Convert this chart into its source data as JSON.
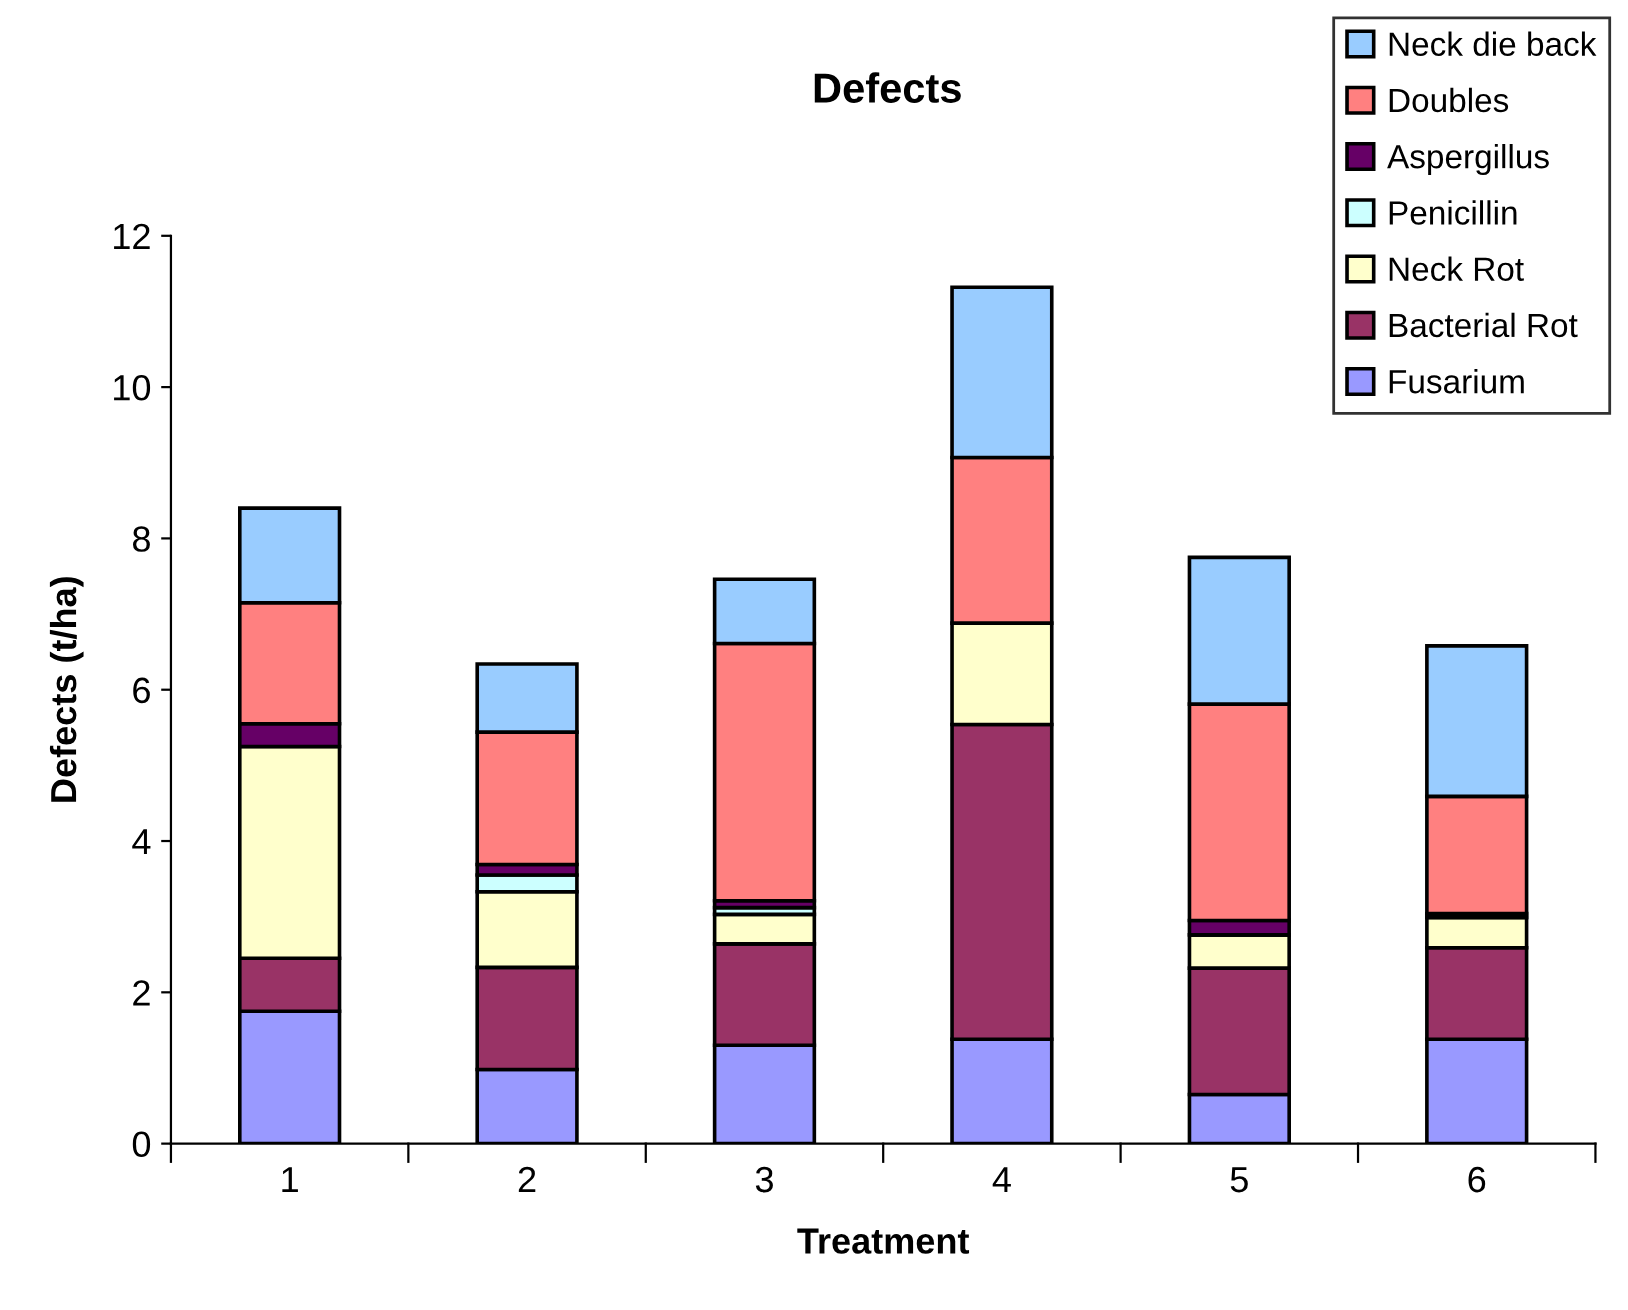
{
  "chart_data": {
    "type": "bar",
    "title": "Defects",
    "xlabel": "Treatment",
    "ylabel": "Defects (t/ha)",
    "categories": [
      "1",
      "2",
      "3",
      "4",
      "5",
      "6"
    ],
    "stacked": true,
    "legend": "top right",
    "grid": false,
    "ylim": [
      0,
      12
    ],
    "yticks": [
      0,
      2,
      4,
      6,
      8,
      10,
      12
    ],
    "series": [
      {
        "name": "Fusarium",
        "color": "#9999ff",
        "values": [
          1.75,
          0.98,
          1.3,
          1.38,
          0.65,
          1.38
        ]
      },
      {
        "name": "Bacterial Rot",
        "color": "#993366",
        "values": [
          0.7,
          1.35,
          1.34,
          4.16,
          1.67,
          1.21
        ]
      },
      {
        "name": "Neck Rot",
        "color": "#ffffcc",
        "values": [
          2.8,
          1.0,
          0.39,
          1.34,
          0.44,
          0.4
        ]
      },
      {
        "name": "Penicillin",
        "color": "#ccffff",
        "values": [
          0,
          0.22,
          0.09,
          0,
          0,
          0
        ]
      },
      {
        "name": "Aspergillus",
        "color": "#660066",
        "values": [
          0.3,
          0.14,
          0.09,
          0,
          0.19,
          0.05
        ]
      },
      {
        "name": "Doubles",
        "color": "#ff8080",
        "values": [
          1.6,
          1.75,
          3.4,
          2.19,
          2.86,
          1.55
        ]
      },
      {
        "name": "Neck die back",
        "color": "#99ccff",
        "values": [
          1.25,
          0.9,
          0.85,
          2.25,
          1.94,
          1.99
        ]
      }
    ]
  }
}
